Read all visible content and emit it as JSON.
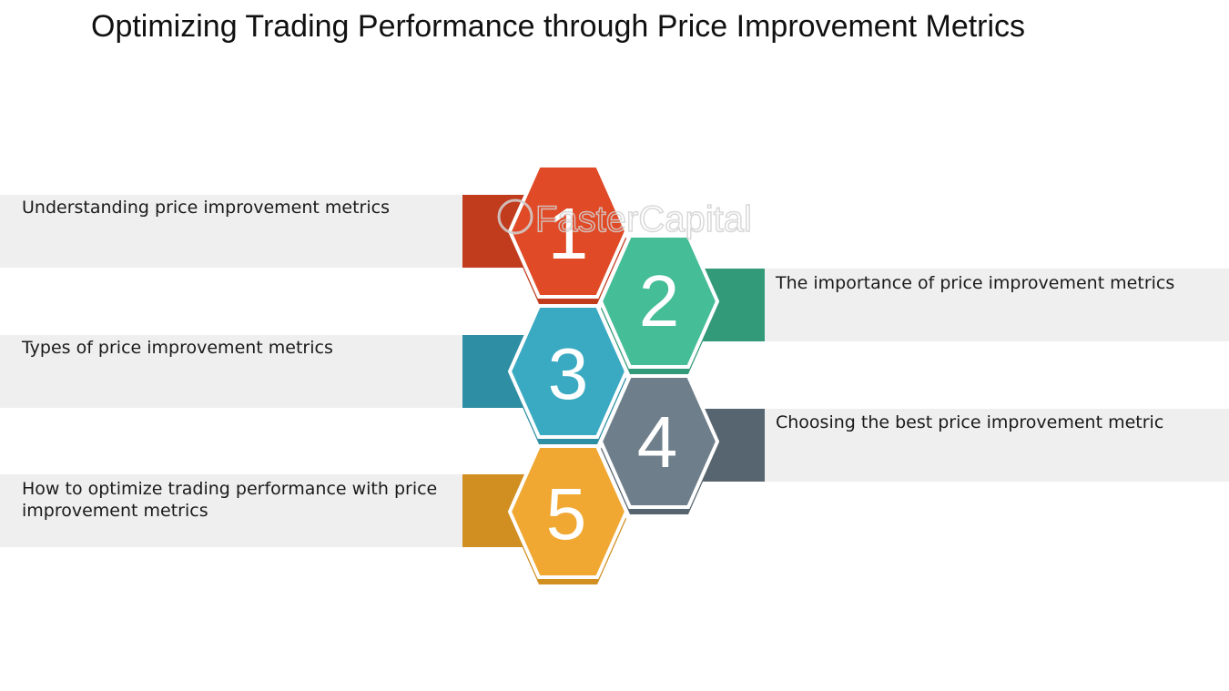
{
  "title": "Optimizing Trading Performance through Price Improvement Metrics",
  "watermark": "FasterCapital",
  "steps": [
    {
      "number": "1",
      "text": "Understanding price improvement metrics",
      "color": "#e04a26",
      "dark": "#c13b1d",
      "side": "left"
    },
    {
      "number": "2",
      "text": "The importance of price improvement metrics",
      "color": "#45bd96",
      "dark": "#339a79",
      "side": "right"
    },
    {
      "number": "3",
      "text": "Types of price improvement metrics",
      "color": "#3aaac2",
      "dark": "#2e8ea3",
      "side": "left"
    },
    {
      "number": "4",
      "text": "Choosing the best price improvement metric",
      "color": "#6e7f8b",
      "dark": "#56656f",
      "side": "right"
    },
    {
      "number": "5",
      "text": "How to optimize trading performance with price improvement metrics",
      "color": "#f0a832",
      "dark": "#d18f22",
      "side": "left"
    }
  ]
}
